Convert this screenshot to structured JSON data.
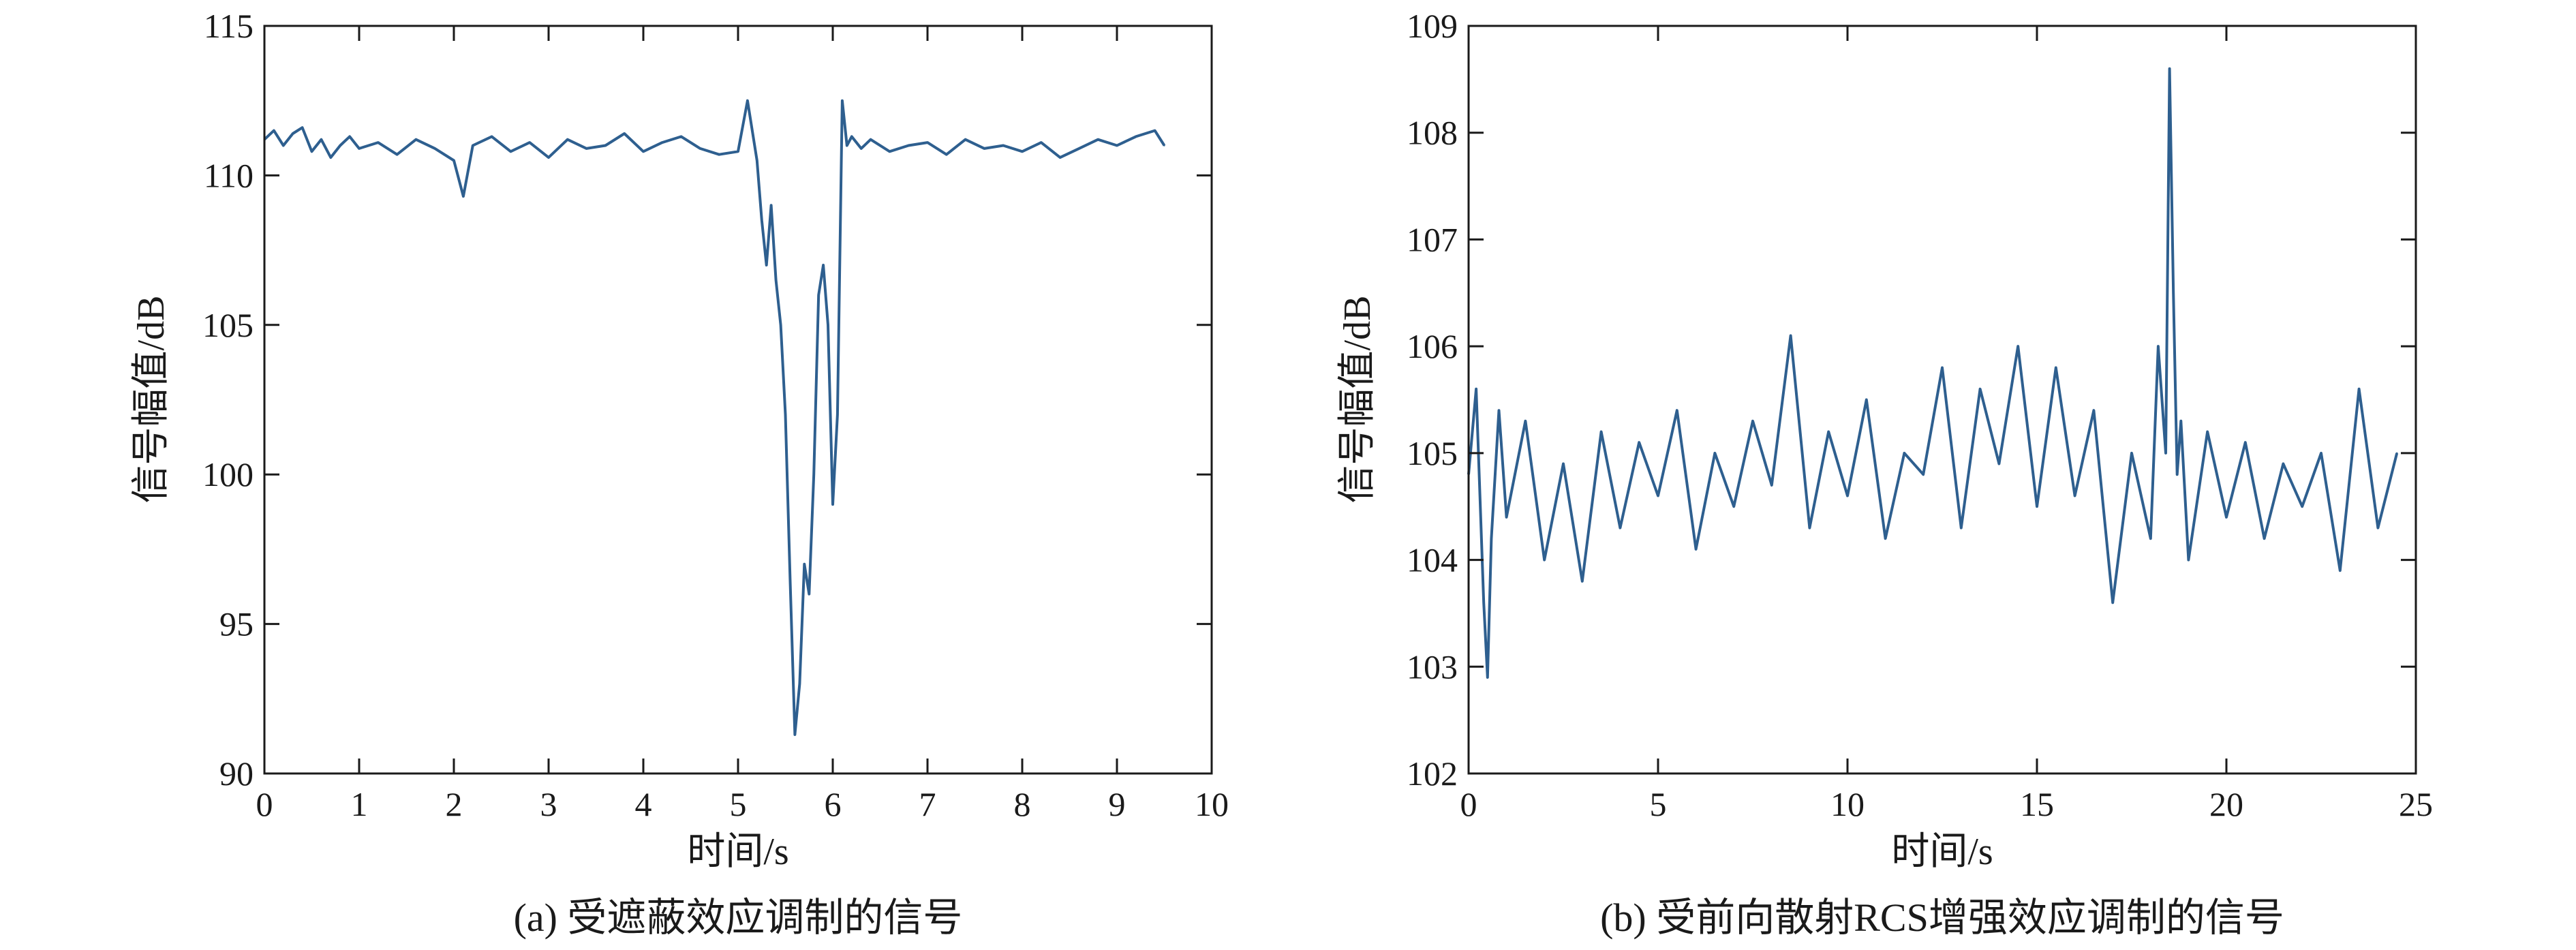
{
  "chart_data": [
    {
      "type": "line",
      "panel": "a",
      "caption": "(a) 受遮蔽效应调制的信号",
      "xlabel": "时间/s",
      "ylabel": "信号幅值/dB",
      "xlim": [
        0,
        10
      ],
      "ylim": [
        90,
        115
      ],
      "xticks": [
        "0",
        "1",
        "2",
        "3",
        "4",
        "5",
        "6",
        "7",
        "8",
        "9",
        "10"
      ],
      "yticks": [
        "90",
        "95",
        "100",
        "105",
        "110",
        "115"
      ],
      "grid": false,
      "line_color": "#2e5f8f",
      "series": [
        {
          "x": [
            0,
            0.1,
            0.2,
            0.3,
            0.4,
            0.5,
            0.6,
            0.7,
            0.8,
            0.9,
            1.0,
            1.2,
            1.4,
            1.6,
            1.8,
            2.0,
            2.1,
            2.2,
            2.4,
            2.6,
            2.8,
            3.0,
            3.2,
            3.4,
            3.6,
            3.8,
            4.0,
            4.2,
            4.4,
            4.6,
            4.8,
            5.0,
            5.1,
            5.2,
            5.25,
            5.3,
            5.35,
            5.4,
            5.45,
            5.5,
            5.55,
            5.6,
            5.65,
            5.7,
            5.75,
            5.8,
            5.85,
            5.9,
            5.95,
            6.0,
            6.05,
            6.1,
            6.15,
            6.2,
            6.3,
            6.4,
            6.6,
            6.8,
            7.0,
            7.2,
            7.4,
            7.6,
            7.8,
            8.0,
            8.2,
            8.4,
            8.6,
            8.8,
            9.0,
            9.2,
            9.4,
            9.5
          ],
          "y": [
            111.2,
            111.5,
            111.0,
            111.4,
            111.6,
            110.8,
            111.2,
            110.6,
            111.0,
            111.3,
            110.9,
            111.1,
            110.7,
            111.2,
            110.9,
            110.5,
            109.3,
            111.0,
            111.3,
            110.8,
            111.1,
            110.6,
            111.2,
            110.9,
            111.0,
            111.4,
            110.8,
            111.1,
            111.3,
            110.9,
            110.7,
            110.8,
            112.5,
            110.5,
            108.5,
            107.0,
            109.0,
            106.5,
            105.0,
            102.0,
            96.5,
            91.3,
            93.0,
            97.0,
            96.0,
            100.0,
            106.0,
            107.0,
            105.0,
            99.0,
            102.0,
            112.5,
            111.0,
            111.3,
            110.9,
            111.2,
            110.8,
            111.0,
            111.1,
            110.7,
            111.2,
            110.9,
            111.0,
            110.8,
            111.1,
            110.6,
            110.9,
            111.2,
            111.0,
            111.3,
            111.5,
            111.0
          ]
        }
      ]
    },
    {
      "type": "line",
      "panel": "b",
      "caption": "(b) 受前向散射RCS增强效应调制的信号",
      "xlabel": "时间/s",
      "ylabel": "信号幅值/dB",
      "xlim": [
        0,
        25
      ],
      "ylim": [
        102,
        109
      ],
      "xticks": [
        "0",
        "5",
        "10",
        "15",
        "20",
        "25"
      ],
      "yticks": [
        "102",
        "103",
        "104",
        "105",
        "106",
        "107",
        "108",
        "109"
      ],
      "grid": false,
      "line_color": "#2e5f8f",
      "series": [
        {
          "x": [
            0,
            0.2,
            0.4,
            0.5,
            0.6,
            0.8,
            1.0,
            1.5,
            2.0,
            2.5,
            3.0,
            3.5,
            4.0,
            4.5,
            5.0,
            5.5,
            6.0,
            6.5,
            7.0,
            7.5,
            8.0,
            8.5,
            9.0,
            9.5,
            10.0,
            10.5,
            11.0,
            11.5,
            12.0,
            12.5,
            13.0,
            13.5,
            14.0,
            14.5,
            15.0,
            15.5,
            16.0,
            16.5,
            17.0,
            17.5,
            18.0,
            18.2,
            18.4,
            18.5,
            18.6,
            18.7,
            18.8,
            19.0,
            19.5,
            20.0,
            20.5,
            21.0,
            21.5,
            22.0,
            22.5,
            23.0,
            23.5,
            24.0,
            24.5
          ],
          "y": [
            104.8,
            105.6,
            103.6,
            102.9,
            104.2,
            105.4,
            104.4,
            105.3,
            104.0,
            104.9,
            103.8,
            105.2,
            104.3,
            105.1,
            104.6,
            105.4,
            104.1,
            105.0,
            104.5,
            105.3,
            104.7,
            106.1,
            104.3,
            105.2,
            104.6,
            105.5,
            104.2,
            105.0,
            104.8,
            105.8,
            104.3,
            105.6,
            104.9,
            106.0,
            104.5,
            105.8,
            104.6,
            105.4,
            103.6,
            105.0,
            104.2,
            106.0,
            105.0,
            108.6,
            106.5,
            104.8,
            105.3,
            104.0,
            105.2,
            104.4,
            105.1,
            104.2,
            104.9,
            104.5,
            105.0,
            103.9,
            105.6,
            104.3,
            105.0
          ]
        }
      ]
    }
  ]
}
